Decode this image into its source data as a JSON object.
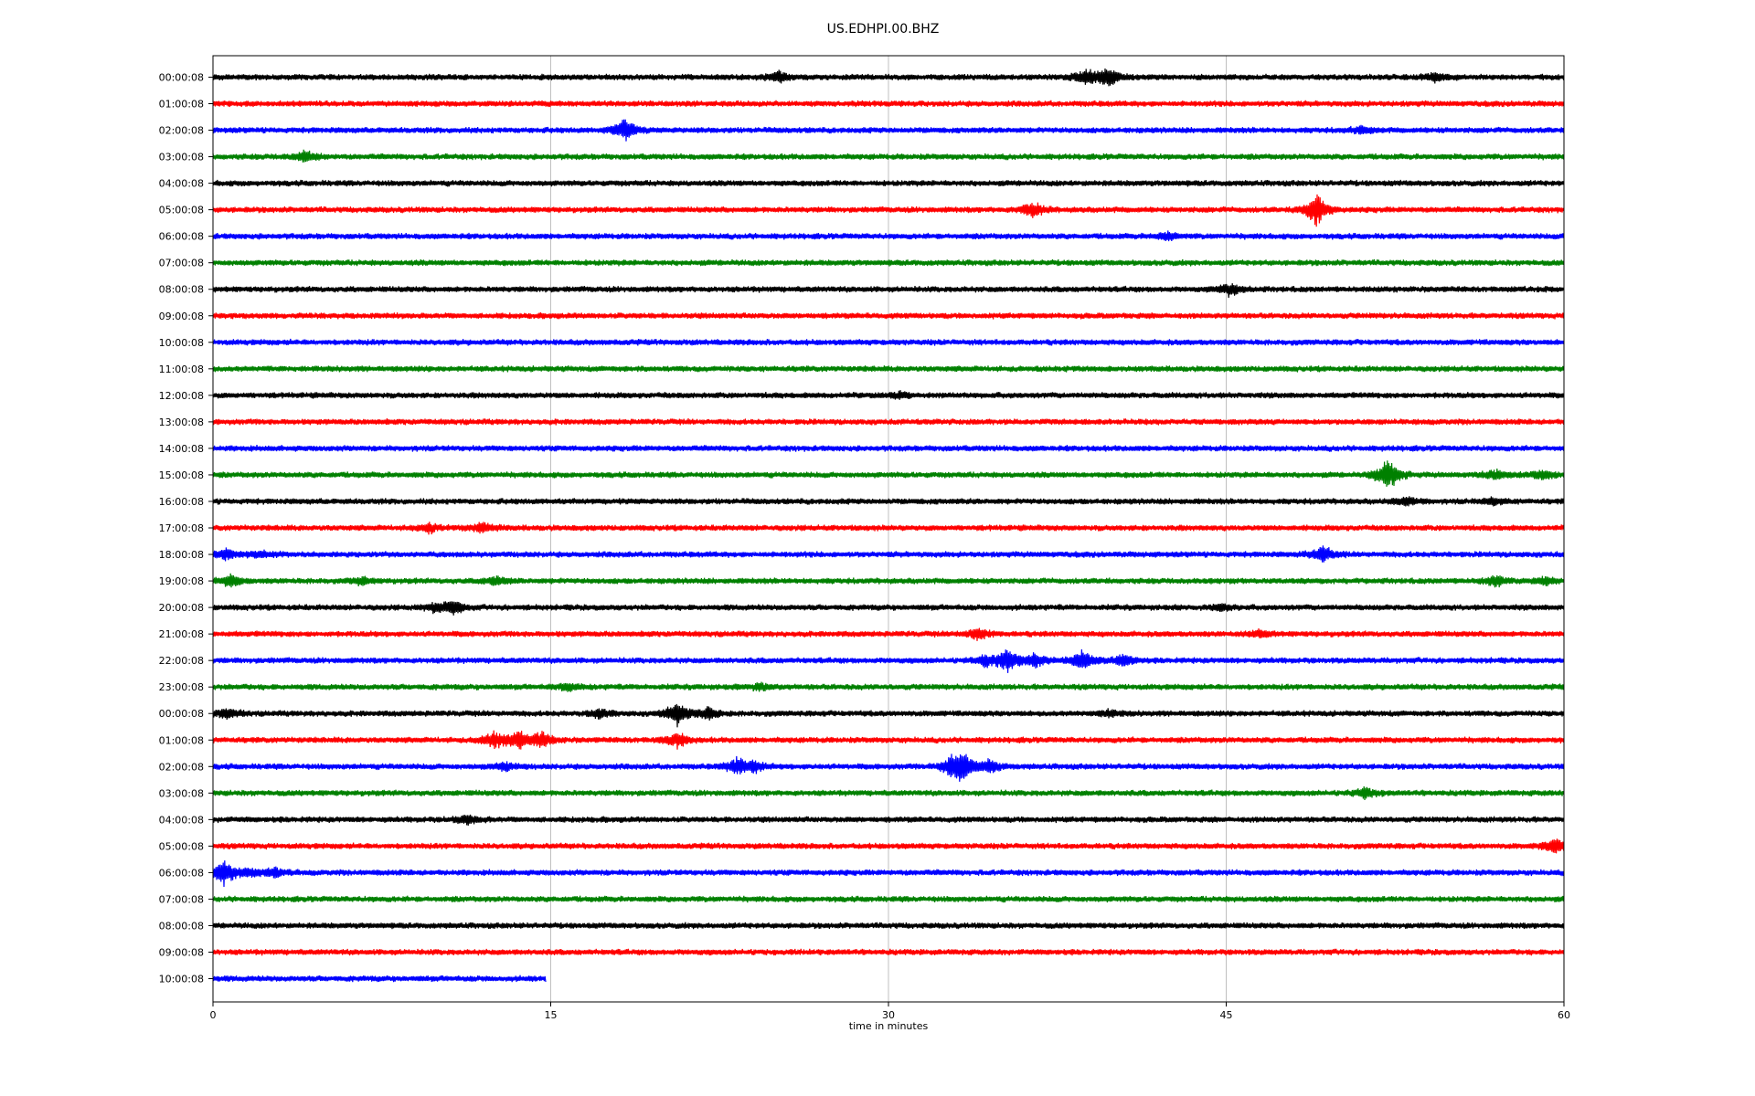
{
  "chart_data": {
    "type": "line",
    "title": "US.EDHPI.00.BHZ",
    "xlabel": "time in minutes",
    "ylabel": "",
    "xlim": [
      0,
      60
    ],
    "x_ticks": [
      0,
      15,
      30,
      45,
      60
    ],
    "grid": "vertical",
    "colors": [
      "#000000",
      "#ff0000",
      "#0000ff",
      "#008000"
    ],
    "rows": [
      {
        "label": "00:00:08",
        "end_minute": 60,
        "events": [
          {
            "t": 25.1,
            "amp": 0.35
          },
          {
            "t": 38.8,
            "amp": 0.45
          },
          {
            "t": 39.8,
            "amp": 0.55
          },
          {
            "t": 54.3,
            "amp": 0.25
          }
        ]
      },
      {
        "label": "01:00:08",
        "end_minute": 60,
        "events": []
      },
      {
        "label": "02:00:08",
        "end_minute": 60,
        "events": [
          {
            "t": 18.3,
            "amp": 0.7
          },
          {
            "t": 51.0,
            "amp": 0.2
          }
        ]
      },
      {
        "label": "03:00:08",
        "end_minute": 60,
        "events": [
          {
            "t": 4.1,
            "amp": 0.3
          }
        ]
      },
      {
        "label": "04:00:08",
        "end_minute": 60,
        "events": []
      },
      {
        "label": "05:00:08",
        "end_minute": 60,
        "events": [
          {
            "t": 36.4,
            "amp": 0.45
          },
          {
            "t": 49.0,
            "amp": 1.0
          }
        ]
      },
      {
        "label": "06:00:08",
        "end_minute": 60,
        "events": [
          {
            "t": 42.4,
            "amp": 0.2
          }
        ]
      },
      {
        "label": "07:00:08",
        "end_minute": 60,
        "events": []
      },
      {
        "label": "08:00:08",
        "end_minute": 60,
        "events": [
          {
            "t": 45.2,
            "amp": 0.4
          }
        ]
      },
      {
        "label": "09:00:08",
        "end_minute": 60,
        "events": []
      },
      {
        "label": "10:00:08",
        "end_minute": 60,
        "events": []
      },
      {
        "label": "11:00:08",
        "end_minute": 60,
        "events": []
      },
      {
        "label": "12:00:08",
        "end_minute": 60,
        "events": [
          {
            "t": 30.5,
            "amp": 0.15
          }
        ]
      },
      {
        "label": "13:00:08",
        "end_minute": 60,
        "events": []
      },
      {
        "label": "14:00:08",
        "end_minute": 60,
        "events": []
      },
      {
        "label": "15:00:08",
        "end_minute": 60,
        "events": [
          {
            "t": 52.2,
            "amp": 1.1
          },
          {
            "t": 57.0,
            "amp": 0.25
          },
          {
            "t": 59.0,
            "amp": 0.25
          }
        ]
      },
      {
        "label": "16:00:08",
        "end_minute": 60,
        "events": [
          {
            "t": 53.0,
            "amp": 0.25
          },
          {
            "t": 56.8,
            "amp": 0.2
          }
        ]
      },
      {
        "label": "17:00:08",
        "end_minute": 60,
        "events": [
          {
            "t": 9.6,
            "amp": 0.25
          },
          {
            "t": 12.0,
            "amp": 0.3
          }
        ]
      },
      {
        "label": "18:00:08",
        "end_minute": 60,
        "events": [
          {
            "t": 0.6,
            "amp": 0.3
          },
          {
            "t": 2.2,
            "amp": 0.2
          },
          {
            "t": 49.3,
            "amp": 0.5
          }
        ]
      },
      {
        "label": "19:00:08",
        "end_minute": 60,
        "events": [
          {
            "t": 0.8,
            "amp": 0.35
          },
          {
            "t": 6.6,
            "amp": 0.2
          },
          {
            "t": 12.6,
            "amp": 0.25
          },
          {
            "t": 57.0,
            "amp": 0.3
          },
          {
            "t": 59.2,
            "amp": 0.2
          }
        ]
      },
      {
        "label": "20:00:08",
        "end_minute": 60,
        "events": [
          {
            "t": 9.8,
            "amp": 0.2
          },
          {
            "t": 10.7,
            "amp": 0.45
          },
          {
            "t": 44.8,
            "amp": 0.2
          }
        ]
      },
      {
        "label": "21:00:08",
        "end_minute": 60,
        "events": [
          {
            "t": 34.0,
            "amp": 0.35
          },
          {
            "t": 46.4,
            "amp": 0.2
          }
        ]
      },
      {
        "label": "22:00:08",
        "end_minute": 60,
        "events": [
          {
            "t": 34.3,
            "amp": 0.3
          },
          {
            "t": 35.3,
            "amp": 0.7
          },
          {
            "t": 36.5,
            "amp": 0.4
          },
          {
            "t": 38.6,
            "amp": 0.6
          },
          {
            "t": 40.4,
            "amp": 0.35
          }
        ]
      },
      {
        "label": "23:00:08",
        "end_minute": 60,
        "events": [
          {
            "t": 15.8,
            "amp": 0.25
          },
          {
            "t": 24.3,
            "amp": 0.2
          }
        ]
      },
      {
        "label": "00:00:08",
        "end_minute": 60,
        "events": [
          {
            "t": 0.6,
            "amp": 0.3
          },
          {
            "t": 17.2,
            "amp": 0.25
          },
          {
            "t": 20.6,
            "amp": 0.7
          },
          {
            "t": 22.0,
            "amp": 0.35
          },
          {
            "t": 39.8,
            "amp": 0.2
          }
        ]
      },
      {
        "label": "01:00:08",
        "end_minute": 60,
        "events": [
          {
            "t": 12.5,
            "amp": 0.5
          },
          {
            "t": 13.6,
            "amp": 0.55
          },
          {
            "t": 14.6,
            "amp": 0.45
          },
          {
            "t": 20.6,
            "amp": 0.45
          }
        ]
      },
      {
        "label": "02:00:08",
        "end_minute": 60,
        "events": [
          {
            "t": 13.0,
            "amp": 0.25
          },
          {
            "t": 23.3,
            "amp": 0.5
          },
          {
            "t": 24.0,
            "amp": 0.35
          },
          {
            "t": 32.8,
            "amp": 0.5
          },
          {
            "t": 33.3,
            "amp": 0.9
          },
          {
            "t": 34.5,
            "amp": 0.35
          }
        ]
      },
      {
        "label": "03:00:08",
        "end_minute": 60,
        "events": [
          {
            "t": 51.2,
            "amp": 0.3
          }
        ]
      },
      {
        "label": "04:00:08",
        "end_minute": 60,
        "events": [
          {
            "t": 11.3,
            "amp": 0.25
          }
        ]
      },
      {
        "label": "05:00:08",
        "end_minute": 60,
        "events": [
          {
            "t": 59.6,
            "amp": 0.45
          }
        ]
      },
      {
        "label": "06:00:08",
        "end_minute": 60,
        "events": [
          {
            "t": 0.5,
            "amp": 0.8
          },
          {
            "t": 1.6,
            "amp": 0.25
          },
          {
            "t": 2.8,
            "amp": 0.3
          }
        ]
      },
      {
        "label": "07:00:08",
        "end_minute": 60,
        "events": []
      },
      {
        "label": "08:00:08",
        "end_minute": 60,
        "events": []
      },
      {
        "label": "09:00:08",
        "end_minute": 60,
        "events": []
      },
      {
        "label": "10:00:08",
        "end_minute": 14.8,
        "events": []
      }
    ]
  }
}
